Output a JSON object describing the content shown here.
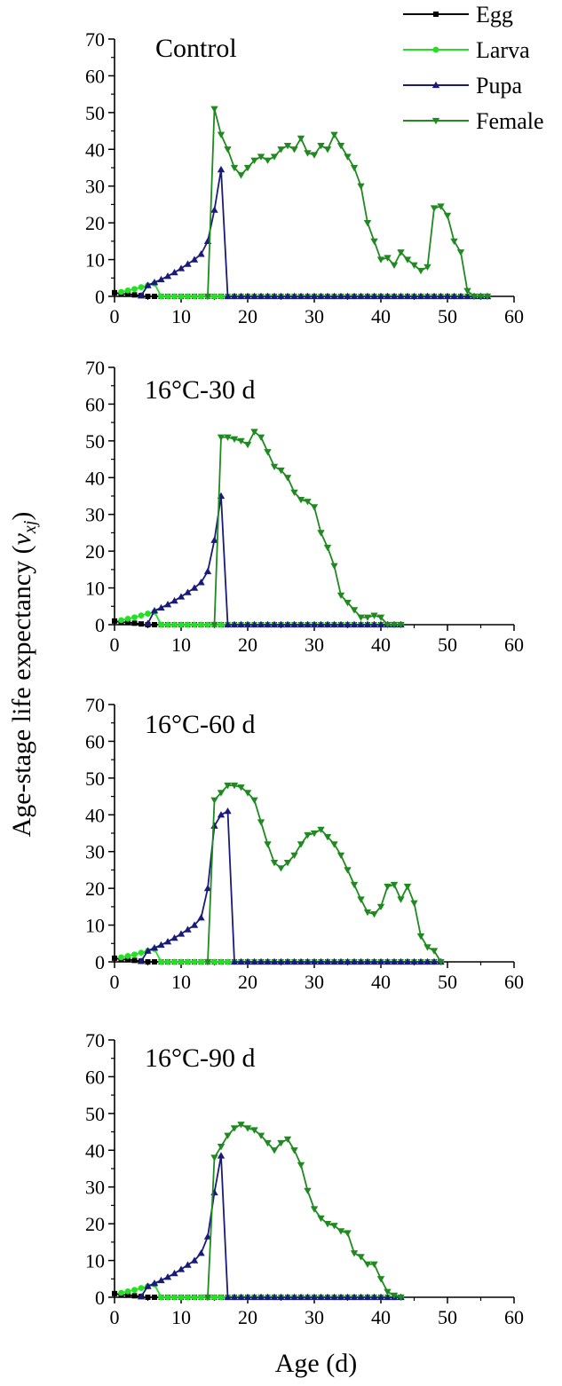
{
  "legend": [
    {
      "name": "Egg",
      "color": "#000000",
      "marker": "square"
    },
    {
      "name": "Larva",
      "color": "#22e022",
      "marker": "circle"
    },
    {
      "name": "Pupa",
      "color": "#1a1a7a",
      "marker": "triangle-up"
    },
    {
      "name": "Female",
      "color": "#1f8a1f",
      "marker": "triangle-down"
    }
  ],
  "ylabel_main": "Age-stage life expectancy (",
  "ylabel_var": "v",
  "ylabel_sub": "xj",
  "ylabel_close": ")",
  "xlabel": "Age (d)",
  "chart_data": [
    {
      "type": "line",
      "title": "Control",
      "xlim": [
        0,
        60
      ],
      "ylim": [
        0,
        70
      ],
      "xticks": [
        "0",
        "10",
        "20",
        "30",
        "40",
        "50",
        "60"
      ],
      "yticks": [
        "0",
        "10",
        "20",
        "30",
        "40",
        "50",
        "60",
        "70"
      ],
      "series": [
        {
          "name": "Egg",
          "x": [
            0,
            1,
            2,
            3,
            4
          ],
          "y": [
            1.0,
            0.7,
            0.6,
            0.4,
            0.2
          ]
        },
        {
          "name": "Larva",
          "x": [
            1,
            2,
            3,
            4,
            5,
            6,
            7
          ],
          "y": [
            1.2,
            1.6,
            2.0,
            2.5,
            3.0,
            3.5,
            0
          ]
        },
        {
          "name": "Pupa",
          "x": [
            4,
            5,
            6,
            7,
            8,
            9,
            10,
            11,
            12,
            13,
            14,
            15,
            16,
            17
          ],
          "y": [
            0.2,
            3.0,
            3.8,
            4.6,
            5.5,
            6.5,
            7.6,
            8.8,
            10.0,
            11.5,
            15.0,
            23.5,
            34.5,
            0
          ]
        },
        {
          "name": "Female",
          "x": [
            14,
            15,
            16,
            17,
            18,
            19,
            20,
            21,
            22,
            23,
            24,
            25,
            26,
            27,
            28,
            29,
            30,
            31,
            32,
            33,
            34,
            35,
            36,
            37,
            38,
            39,
            40,
            41,
            42,
            43,
            44,
            45,
            46,
            47,
            48,
            49,
            50,
            51,
            52,
            53,
            54,
            55,
            56
          ],
          "y": [
            0,
            51,
            44,
            40,
            35,
            33,
            35,
            37,
            38,
            37,
            38,
            40,
            41,
            40,
            43,
            39,
            38.5,
            41,
            40,
            44,
            41,
            38,
            35,
            30,
            20,
            15,
            10,
            10.5,
            8.5,
            12,
            10,
            8.5,
            7,
            8,
            24,
            24.5,
            22,
            15,
            12,
            1.5,
            0,
            0,
            0
          ]
        }
      ]
    },
    {
      "type": "line",
      "title": "16°C-30 d",
      "xlim": [
        0,
        60
      ],
      "ylim": [
        0,
        70
      ],
      "xticks": [
        "0",
        "10",
        "20",
        "30",
        "40",
        "50",
        "60"
      ],
      "yticks": [
        "0",
        "10",
        "20",
        "30",
        "40",
        "50",
        "60",
        "70"
      ],
      "series": [
        {
          "name": "Egg",
          "x": [
            0,
            1,
            2,
            3,
            4
          ],
          "y": [
            1.0,
            0.7,
            0.6,
            0.4,
            0.2
          ]
        },
        {
          "name": "Larva",
          "x": [
            1,
            2,
            3,
            4,
            5,
            6,
            7
          ],
          "y": [
            1.2,
            1.6,
            2.0,
            2.5,
            3.0,
            3.5,
            0
          ]
        },
        {
          "name": "Pupa",
          "x": [
            5,
            6,
            7,
            8,
            9,
            10,
            11,
            12,
            13,
            14,
            15,
            16,
            17
          ],
          "y": [
            0.3,
            3.8,
            4.6,
            5.5,
            6.5,
            7.6,
            8.8,
            10.0,
            11.5,
            14.5,
            23.0,
            35.0,
            0
          ]
        },
        {
          "name": "Female",
          "x": [
            15,
            16,
            17,
            18,
            19,
            20,
            21,
            22,
            23,
            24,
            25,
            26,
            27,
            28,
            29,
            30,
            31,
            32,
            33,
            34,
            35,
            36,
            37,
            38,
            39,
            40,
            41,
            42,
            43
          ],
          "y": [
            0,
            51,
            51,
            50.5,
            50,
            49,
            52.5,
            51,
            47,
            43,
            42,
            40,
            36,
            34,
            33.5,
            32,
            25,
            21,
            16,
            8,
            6,
            4,
            2,
            2,
            2.5,
            2,
            0,
            0,
            0
          ]
        }
      ]
    },
    {
      "type": "line",
      "title": "16°C-60 d",
      "xlim": [
        0,
        60
      ],
      "ylim": [
        0,
        70
      ],
      "xticks": [
        "0",
        "10",
        "20",
        "30",
        "40",
        "50",
        "60"
      ],
      "yticks": [
        "0",
        "10",
        "20",
        "30",
        "40",
        "50",
        "60",
        "70"
      ],
      "series": [
        {
          "name": "Egg",
          "x": [
            0,
            1,
            2,
            3,
            4
          ],
          "y": [
            1.0,
            0.7,
            0.6,
            0.4,
            0.2
          ]
        },
        {
          "name": "Larva",
          "x": [
            1,
            2,
            3,
            4,
            5,
            6,
            7
          ],
          "y": [
            1.2,
            1.6,
            2.0,
            2.5,
            3.0,
            3.5,
            0
          ]
        },
        {
          "name": "Pupa",
          "x": [
            4,
            5,
            6,
            7,
            8,
            9,
            10,
            11,
            12,
            13,
            14,
            15,
            16,
            17,
            18
          ],
          "y": [
            0.2,
            3.0,
            3.8,
            4.6,
            5.5,
            6.5,
            7.6,
            8.8,
            10.0,
            12.0,
            20.0,
            37.0,
            40.0,
            41.0,
            0
          ]
        },
        {
          "name": "Female",
          "x": [
            14,
            15,
            16,
            17,
            18,
            19,
            20,
            21,
            22,
            23,
            24,
            25,
            26,
            27,
            28,
            29,
            30,
            31,
            32,
            33,
            34,
            35,
            36,
            37,
            38,
            39,
            40,
            41,
            42,
            43,
            44,
            45,
            46,
            47,
            48,
            49
          ],
          "y": [
            0,
            44,
            46,
            48,
            48,
            47.5,
            46,
            44,
            38,
            32,
            27,
            25.5,
            27,
            29,
            32,
            34.5,
            35,
            36,
            34,
            32,
            29,
            25,
            21,
            17,
            13.5,
            13,
            15,
            20.5,
            21,
            17,
            20.5,
            16,
            7,
            4,
            3,
            0
          ]
        }
      ]
    },
    {
      "type": "line",
      "title": "16°C-90 d",
      "xlim": [
        0,
        60
      ],
      "ylim": [
        0,
        70
      ],
      "xticks": [
        "0",
        "10",
        "20",
        "30",
        "40",
        "50",
        "60"
      ],
      "yticks": [
        "0",
        "10",
        "20",
        "30",
        "40",
        "50",
        "60",
        "70"
      ],
      "series": [
        {
          "name": "Egg",
          "x": [
            0,
            1,
            2,
            3,
            4
          ],
          "y": [
            1.0,
            0.7,
            0.6,
            0.4,
            0.2
          ]
        },
        {
          "name": "Larva",
          "x": [
            1,
            2,
            3,
            4,
            5,
            6,
            7
          ],
          "y": [
            1.2,
            1.6,
            2.0,
            2.5,
            3.0,
            3.5,
            0
          ]
        },
        {
          "name": "Pupa",
          "x": [
            4,
            5,
            6,
            7,
            8,
            9,
            10,
            11,
            12,
            13,
            14,
            15,
            16,
            17
          ],
          "y": [
            0.2,
            3.0,
            3.8,
            4.6,
            5.5,
            6.5,
            7.6,
            8.8,
            10.0,
            12.0,
            16.5,
            28.5,
            38.5,
            0
          ]
        },
        {
          "name": "Female",
          "x": [
            14,
            15,
            16,
            17,
            18,
            19,
            20,
            21,
            22,
            23,
            24,
            25,
            26,
            27,
            28,
            29,
            30,
            31,
            32,
            33,
            34,
            35,
            36,
            37,
            38,
            39,
            40,
            41,
            42,
            43
          ],
          "y": [
            0,
            38,
            41,
            44,
            46,
            47,
            46,
            45.5,
            44,
            42,
            40,
            42,
            43,
            40,
            36,
            29,
            24,
            21.5,
            20,
            19.5,
            18,
            17.5,
            12,
            11,
            9,
            9,
            5,
            1.5,
            0.5,
            0
          ]
        }
      ]
    }
  ]
}
